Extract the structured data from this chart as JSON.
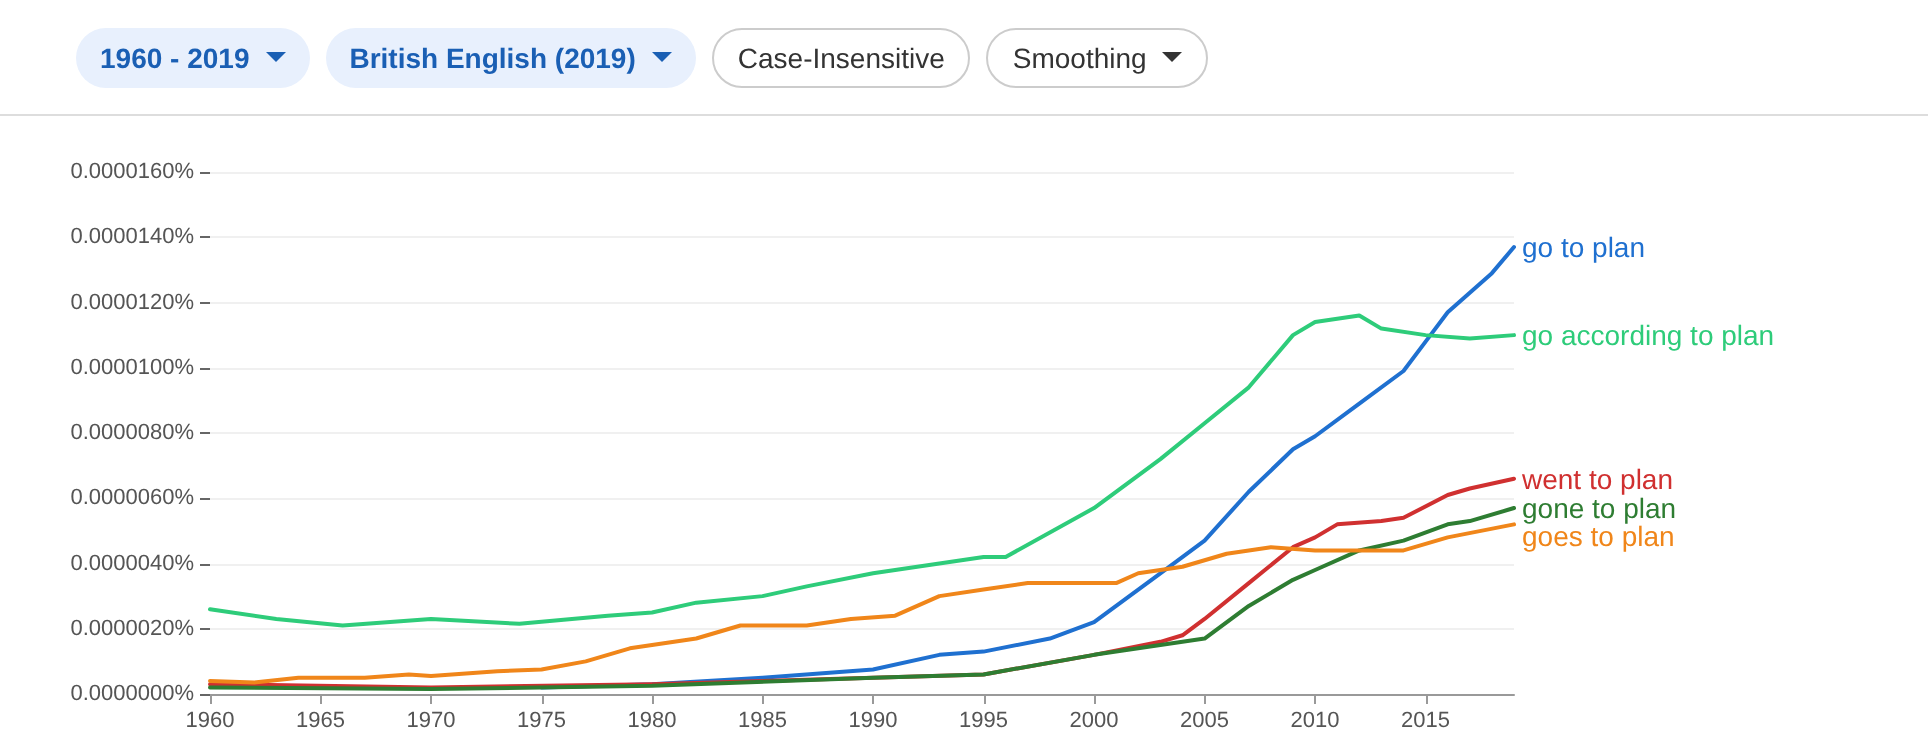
{
  "chart_data": {
    "type": "line",
    "annotations": [
      "1960 - 2019",
      "British English (2019)",
      "Case-Insensitive",
      "Smoothing"
    ],
    "series": [
      {
        "name": "go to plan",
        "color": "#1f70d0",
        "x": [
          1975,
          1980,
          1985,
          1990,
          1993,
          1995,
          1998,
          2000,
          2003,
          2005,
          2007,
          2009,
          2010,
          2012,
          2014,
          2015,
          2016,
          2018,
          2019
        ],
        "values": [
          2e-07,
          3e-07,
          5e-07,
          7.5e-07,
          1.2e-06,
          1.3e-06,
          1.7e-06,
          2.2e-06,
          3.7e-06,
          4.7e-06,
          6.2e-06,
          7.5e-06,
          7.9e-06,
          8.9e-06,
          9.9e-06,
          1.08e-05,
          1.17e-05,
          1.29e-05,
          1.37e-05
        ]
      },
      {
        "name": "go according to plan",
        "color": "#2ecc7a",
        "x": [
          1960,
          1963,
          1966,
          1970,
          1974,
          1978,
          1980,
          1982,
          1985,
          1987,
          1990,
          1993,
          1995,
          1996,
          2000,
          2003,
          2005,
          2007,
          2009,
          2010,
          2012,
          2013,
          2015,
          2017,
          2019
        ],
        "values": [
          2.6e-06,
          2.3e-06,
          2.1e-06,
          2.3e-06,
          2.15e-06,
          2.4e-06,
          2.5e-06,
          2.8e-06,
          3e-06,
          3.3e-06,
          3.7e-06,
          4e-06,
          4.2e-06,
          4.2e-06,
          5.7e-06,
          7.2e-06,
          8.3e-06,
          9.4e-06,
          1.1e-05,
          1.14e-05,
          1.16e-05,
          1.12e-05,
          1.1e-05,
          1.09e-05,
          1.1e-05
        ]
      },
      {
        "name": "went to plan",
        "color": "#d03030",
        "x": [
          1960,
          1970,
          1980,
          1990,
          1995,
          2000,
          2003,
          2004,
          2005,
          2007,
          2009,
          2010,
          2011,
          2013,
          2014,
          2016,
          2017,
          2019
        ],
        "values": [
          3e-07,
          2e-07,
          3e-07,
          5e-07,
          6e-07,
          1.2e-06,
          1.6e-06,
          1.8e-06,
          2.3e-06,
          3.4e-06,
          4.5e-06,
          4.8e-06,
          5.2e-06,
          5.3e-06,
          5.4e-06,
          6.1e-06,
          6.3e-06,
          6.6e-06
        ]
      },
      {
        "name": "gone to plan",
        "color": "#2e7d32",
        "x": [
          1960,
          1970,
          1980,
          1990,
          1995,
          2000,
          2003,
          2005,
          2007,
          2009,
          2010,
          2012,
          2014,
          2016,
          2017,
          2019
        ],
        "values": [
          2e-07,
          1.5e-07,
          2.5e-07,
          5e-07,
          6e-07,
          1.2e-06,
          1.5e-06,
          1.7e-06,
          2.7e-06,
          3.5e-06,
          3.8e-06,
          4.4e-06,
          4.7e-06,
          5.2e-06,
          5.3e-06,
          5.7e-06
        ]
      },
      {
        "name": "goes to plan",
        "color": "#f0861a",
        "x": [
          1960,
          1962,
          1964,
          1967,
          1969,
          1970,
          1973,
          1975,
          1977,
          1979,
          1980,
          1982,
          1984,
          1987,
          1989,
          1991,
          1993,
          1995,
          1997,
          2000,
          2001,
          2002,
          2004,
          2006,
          2008,
          2010,
          2013,
          2014,
          2016,
          2019
        ],
        "values": [
          4e-07,
          3.5e-07,
          5e-07,
          5e-07,
          6e-07,
          5.5e-07,
          7e-07,
          7.5e-07,
          1e-06,
          1.4e-06,
          1.5e-06,
          1.7e-06,
          2.1e-06,
          2.1e-06,
          2.3e-06,
          2.4e-06,
          3e-06,
          3.2e-06,
          3.4e-06,
          3.4e-06,
          3.4e-06,
          3.7e-06,
          3.9e-06,
          4.3e-06,
          4.5e-06,
          4.4e-06,
          4.4e-06,
          4.4e-06,
          4.8e-06,
          5.2e-06
        ]
      }
    ],
    "xlim": [
      1960,
      2019
    ],
    "xticks": [
      1960,
      1965,
      1970,
      1975,
      1980,
      1985,
      1990,
      1995,
      2000,
      2005,
      2010,
      2015
    ],
    "ylim": [
      0,
      1.6e-05
    ],
    "yticks": [
      {
        "value": 0,
        "label": "0.0000000%"
      },
      {
        "value": 2e-06,
        "label": "0.0000020%"
      },
      {
        "value": 4e-06,
        "label": "0.0000040%"
      },
      {
        "value": 6e-06,
        "label": "0.0000060%"
      },
      {
        "value": 8e-06,
        "label": "0.0000080%"
      },
      {
        "value": 1e-05,
        "label": "0.0000100%"
      },
      {
        "value": 1.2e-05,
        "label": "0.0000120%"
      },
      {
        "value": 1.4e-05,
        "label": "0.0000140%"
      },
      {
        "value": 1.6e-05,
        "label": "0.0000160%"
      }
    ],
    "grid": "y",
    "legend": false,
    "marker": "none",
    "line_style": "solid"
  }
}
